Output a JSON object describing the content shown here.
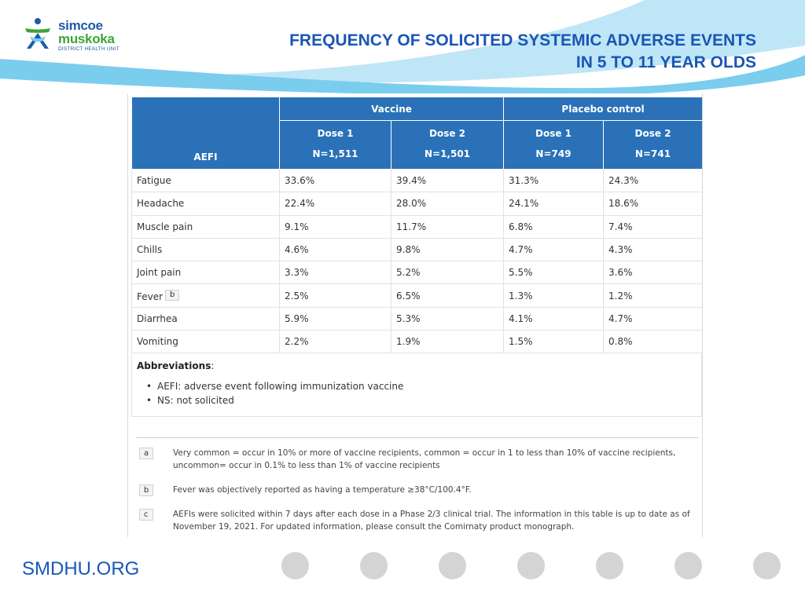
{
  "logo": {
    "line1": "simcoe",
    "line2": "muskoka",
    "line3": "DISTRICT HEALTH UNIT"
  },
  "title": {
    "line1": "FREQUENCY OF SOLICITED SYSTEMIC ADVERSE EVENTS",
    "line2": "IN 5 TO 11 YEAR OLDS"
  },
  "table": {
    "aefi_header": "AEFI",
    "groups": [
      "Vaccine",
      "Placebo control"
    ],
    "doses": [
      {
        "dose": "Dose 1",
        "n": "N=1,511"
      },
      {
        "dose": "Dose 2",
        "n": "N=1,501"
      },
      {
        "dose": "Dose 1",
        "n": "N=749"
      },
      {
        "dose": "Dose 2",
        "n": "N=741"
      }
    ],
    "rows": [
      {
        "event": "Fatigue",
        "tag": "",
        "values": [
          "33.6%",
          "39.4%",
          "31.3%",
          "24.3%"
        ]
      },
      {
        "event": "Headache",
        "tag": "",
        "values": [
          "22.4%",
          "28.0%",
          "24.1%",
          "18.6%"
        ]
      },
      {
        "event": "Muscle pain",
        "tag": "",
        "values": [
          "9.1%",
          "11.7%",
          "6.8%",
          "7.4%"
        ]
      },
      {
        "event": "Chills",
        "tag": "",
        "values": [
          "4.6%",
          "9.8%",
          "4.7%",
          "4.3%"
        ]
      },
      {
        "event": "Joint pain",
        "tag": "",
        "values": [
          "3.3%",
          "5.2%",
          "5.5%",
          "3.6%"
        ]
      },
      {
        "event": "Fever",
        "tag": "b",
        "values": [
          "2.5%",
          "6.5%",
          "1.3%",
          "1.2%"
        ]
      },
      {
        "event": "Diarrhea",
        "tag": "",
        "values": [
          "5.9%",
          "5.3%",
          "4.1%",
          "4.7%"
        ]
      },
      {
        "event": "Vomiting",
        "tag": "",
        "values": [
          "2.2%",
          "1.9%",
          "1.5%",
          "0.8%"
        ]
      }
    ]
  },
  "abbreviations": {
    "title": "Abbreviations",
    "items": [
      "AEFI: adverse event following immunization vaccine",
      "NS: not solicited"
    ]
  },
  "footnotes": [
    {
      "key": "a",
      "text": "Very common = occur in 10% or more of vaccine recipients, common = occur in 1 to less than 10% of vaccine recipients, uncommon= occur in 0.1% to less than 1% of vaccine recipients"
    },
    {
      "key": "b",
      "text": "Fever was objectively reported as having a temperature ≥38°C/100.4°F."
    },
    {
      "key": "c",
      "text": "AEFIs were solicited within 7 days after each dose in a Phase 2/3 clinical trial. The information in this table is up to date as of November 19, 2021. For updated information, please consult the Comirnaty product monograph."
    }
  ],
  "footer": {
    "url": "SMDHU.ORG",
    "dot_count": 7
  },
  "colors": {
    "title": "#1a56b4",
    "table_header": "#2a71b8",
    "wave_light": "#bfe6f7",
    "wave_main": "#7bcdee",
    "dot": "#d4d4d4"
  },
  "icons": {
    "logo": "simcoe-muskoka-figure-icon"
  }
}
